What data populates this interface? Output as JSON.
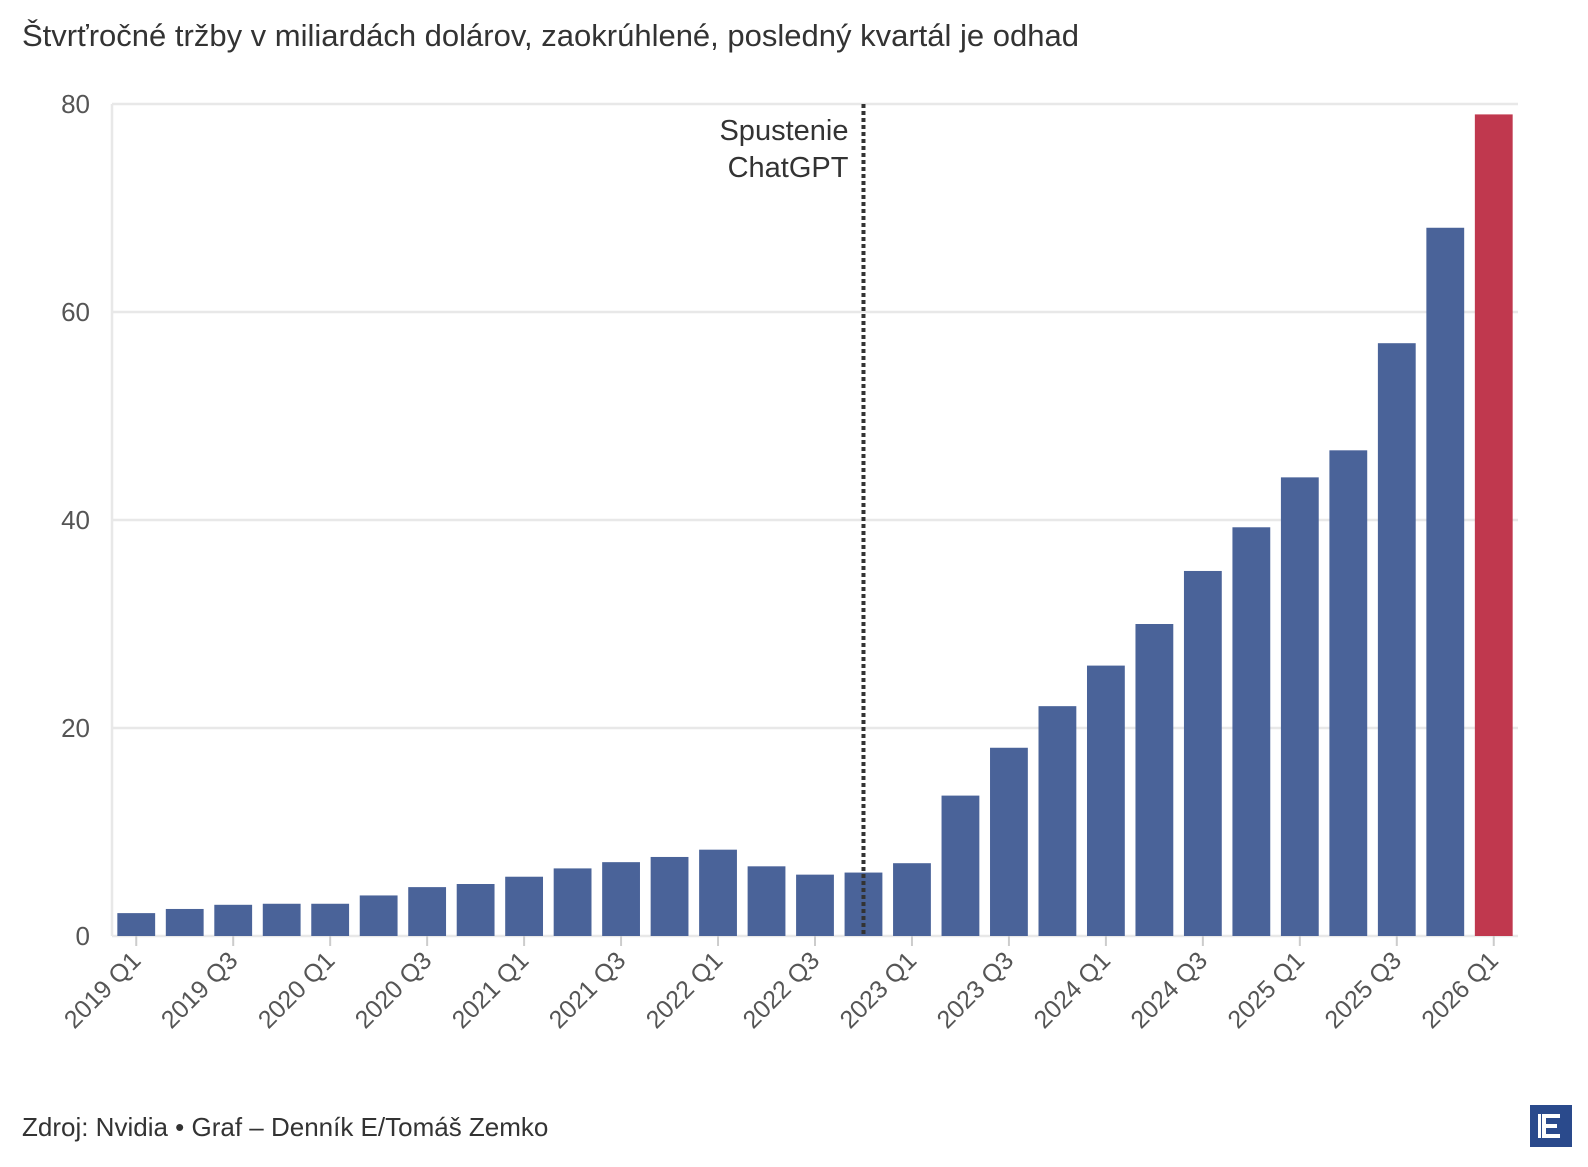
{
  "subtitle": "Štvrťročné tržby v miliardách dolárov, zaokrúhlené, posledný kvartál je odhad",
  "footer": "Zdroj: Nvidia • Graf – Denník E/Tomáš Zemko",
  "logo_icon": "denník-e-logo-icon",
  "colors": {
    "bar": "#4a6399",
    "estimate_bar": "#c0384e",
    "grid": "#e8e8e8",
    "marker_line": "#333333"
  },
  "chart_data": {
    "type": "bar",
    "categories": [
      "2019 Q1",
      "2019 Q2",
      "2019 Q3",
      "2019 Q4",
      "2020 Q1",
      "2020 Q2",
      "2020 Q3",
      "2020 Q4",
      "2021 Q1",
      "2021 Q2",
      "2021 Q3",
      "2021 Q4",
      "2022 Q1",
      "2022 Q2",
      "2022 Q3",
      "2022 Q4",
      "2023 Q1",
      "2023 Q2",
      "2023 Q3",
      "2023 Q4",
      "2024 Q1",
      "2024 Q2",
      "2024 Q3",
      "2024 Q4",
      "2025 Q1",
      "2025 Q2",
      "2025 Q3",
      "2025 Q4",
      "2026 Q1"
    ],
    "values": [
      2.2,
      2.6,
      3.0,
      3.1,
      3.1,
      3.9,
      4.7,
      5.0,
      5.7,
      6.5,
      7.1,
      7.6,
      8.3,
      6.7,
      5.9,
      6.1,
      7.0,
      13.5,
      18.1,
      22.1,
      26.0,
      30.0,
      35.1,
      39.3,
      44.1,
      46.7,
      57.0,
      68.1,
      79.0
    ],
    "estimate_index": 28,
    "tick_labels": [
      "2019 Q1",
      "2019 Q3",
      "2020 Q1",
      "2020 Q3",
      "2021 Q1",
      "2021 Q3",
      "2022 Q1",
      "2022 Q3",
      "2023 Q1",
      "2023 Q3",
      "2024 Q1",
      "2024 Q3",
      "2025 Q1",
      "2025 Q3",
      "2026 Q1"
    ],
    "y_ticks": [
      0,
      20,
      40,
      60,
      80
    ],
    "ylim": [
      0,
      80
    ],
    "grid": true,
    "annotation": {
      "lines": [
        "Spustenie",
        "ChatGPT"
      ],
      "after_category": "2022 Q4"
    }
  }
}
